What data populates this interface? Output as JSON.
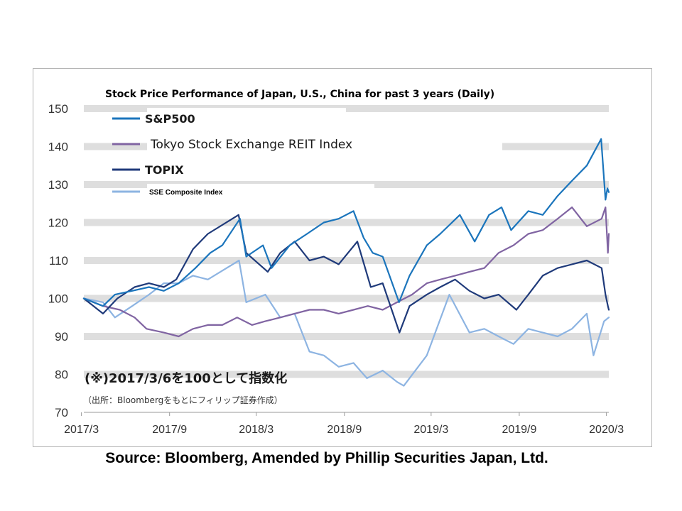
{
  "chart_data": {
    "type": "line",
    "title": "Stock Price Performance of Japan, U.S., China for past 3 years (Daily)",
    "ylim": [
      70,
      150
    ],
    "yticks": [
      "150",
      "140",
      "130",
      "120",
      "110",
      "100",
      "90",
      "80",
      "70"
    ],
    "ytick_values": [
      150,
      140,
      130,
      120,
      110,
      100,
      90,
      80,
      70
    ],
    "x_start": "2017-03-06",
    "x_end": "2020-03-06",
    "xticks": [
      "2017/3",
      "2017/9",
      "2018/3",
      "2018/9",
      "2019/3",
      "2019/9",
      "2020/3"
    ],
    "xtick_dates": [
      "2017-03-01",
      "2017-09-01",
      "2018-03-01",
      "2018-09-01",
      "2019-03-01",
      "2019-09-01",
      "2020-03-01"
    ],
    "grid": "horizontal bands",
    "legend_position": "top-left",
    "annotation": "(※)2017/3/6を100として指数化",
    "annotation_sub": "（出所：Bloombergをもとにフィリップ証券作成）",
    "series": [
      {
        "name": "S&P500",
        "color": "#1b75bc",
        "dates": [
          "2017-03-06",
          "2017-04-15",
          "2017-05-10",
          "2017-06-15",
          "2017-07-20",
          "2017-08-20",
          "2017-09-20",
          "2017-10-25",
          "2017-11-25",
          "2017-12-20",
          "2018-01-26",
          "2018-02-08",
          "2018-03-15",
          "2018-04-02",
          "2018-05-10",
          "2018-06-15",
          "2018-07-20",
          "2018-08-20",
          "2018-09-20",
          "2018-10-11",
          "2018-10-30",
          "2018-11-20",
          "2018-12-24",
          "2019-01-15",
          "2019-02-20",
          "2019-03-20",
          "2019-04-30",
          "2019-05-31",
          "2019-06-30",
          "2019-07-26",
          "2019-08-15",
          "2019-09-20",
          "2019-10-20",
          "2019-11-20",
          "2019-12-20",
          "2020-01-20",
          "2020-02-19",
          "2020-02-28",
          "2020-03-03",
          "2020-03-06"
        ],
        "values": [
          100,
          98,
          101,
          102,
          103,
          102,
          104,
          108,
          112,
          114,
          121,
          111,
          114,
          108,
          114,
          117,
          120,
          121,
          123,
          116,
          112,
          111,
          99,
          106,
          114,
          117,
          122,
          115,
          122,
          124,
          118,
          123,
          122,
          127,
          131,
          135,
          142,
          126,
          129,
          128
        ]
      },
      {
        "name": "Tokyo Stock Exchange REIT Index",
        "color": "#8064a2",
        "dates": [
          "2017-03-06",
          "2017-04-15",
          "2017-05-20",
          "2017-06-20",
          "2017-07-15",
          "2017-08-20",
          "2017-09-20",
          "2017-10-20",
          "2017-11-20",
          "2017-12-20",
          "2018-01-20",
          "2018-02-20",
          "2018-03-20",
          "2018-04-20",
          "2018-05-20",
          "2018-06-20",
          "2018-07-20",
          "2018-08-20",
          "2018-09-20",
          "2018-10-20",
          "2018-11-20",
          "2018-12-20",
          "2019-01-20",
          "2019-02-20",
          "2019-03-20",
          "2019-04-20",
          "2019-05-20",
          "2019-06-20",
          "2019-07-20",
          "2019-08-20",
          "2019-09-20",
          "2019-10-20",
          "2019-11-20",
          "2019-12-20",
          "2020-01-20",
          "2020-02-20",
          "2020-02-28",
          "2020-03-04",
          "2020-03-06"
        ],
        "values": [
          100,
          98,
          97,
          95,
          92,
          91,
          90,
          92,
          93,
          93,
          95,
          93,
          94,
          95,
          96,
          97,
          97,
          96,
          97,
          98,
          97,
          99,
          101,
          104,
          105,
          106,
          107,
          108,
          112,
          114,
          117,
          118,
          121,
          124,
          119,
          121,
          124,
          112,
          117
        ]
      },
      {
        "name": "TOPIX",
        "color": "#1f3a7a",
        "dates": [
          "2017-03-06",
          "2017-04-15",
          "2017-05-15",
          "2017-06-20",
          "2017-07-20",
          "2017-08-20",
          "2017-09-15",
          "2017-10-20",
          "2017-11-20",
          "2018-01-23",
          "2018-02-08",
          "2018-03-25",
          "2018-04-20",
          "2018-05-20",
          "2018-06-20",
          "2018-07-20",
          "2018-08-20",
          "2018-09-28",
          "2018-10-26",
          "2018-11-20",
          "2018-12-25",
          "2019-01-15",
          "2019-02-20",
          "2019-03-20",
          "2019-04-20",
          "2019-05-20",
          "2019-06-20",
          "2019-07-20",
          "2019-08-26",
          "2019-09-20",
          "2019-10-20",
          "2019-11-20",
          "2019-12-20",
          "2020-01-20",
          "2020-02-20",
          "2020-02-28",
          "2020-03-04",
          "2020-03-06"
        ],
        "values": [
          100,
          96,
          100,
          103,
          104,
          103,
          105,
          113,
          117,
          122,
          112,
          107,
          112,
          115,
          110,
          111,
          109,
          115,
          103,
          104,
          91,
          98,
          101,
          103,
          105,
          102,
          100,
          101,
          97,
          101,
          106,
          108,
          109,
          110,
          108,
          101,
          98,
          97
        ]
      },
      {
        "name": "SSE Composite Index",
        "color": "#8db4e2",
        "dates": [
          "2017-03-06",
          "2017-04-15",
          "2017-05-10",
          "2017-06-15",
          "2017-07-20",
          "2017-08-20",
          "2017-09-20",
          "2017-10-20",
          "2017-11-20",
          "2018-01-24",
          "2018-02-08",
          "2018-03-20",
          "2018-04-20",
          "2018-05-20",
          "2018-06-20",
          "2018-07-20",
          "2018-08-20",
          "2018-09-20",
          "2018-10-18",
          "2018-11-20",
          "2018-12-20",
          "2019-01-03",
          "2019-02-20",
          "2019-04-08",
          "2019-05-20",
          "2019-06-20",
          "2019-07-20",
          "2019-08-20",
          "2019-09-20",
          "2019-10-20",
          "2019-11-20",
          "2019-12-20",
          "2020-01-20",
          "2020-02-03",
          "2020-02-25",
          "2020-03-06"
        ],
        "values": [
          100,
          99,
          95,
          98,
          101,
          104,
          104,
          106,
          105,
          110,
          99,
          101,
          95,
          96,
          86,
          85,
          82,
          83,
          79,
          81,
          78,
          77,
          85,
          101,
          91,
          92,
          90,
          88,
          92,
          91,
          90,
          92,
          96,
          85,
          94,
          95
        ]
      }
    ]
  },
  "source": "Source: Bloomberg, Amended by Phillip Securities Japan, Ltd."
}
